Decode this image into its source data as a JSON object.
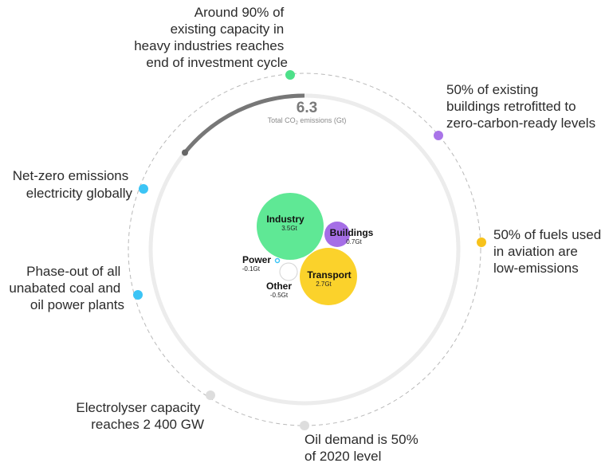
{
  "total": {
    "value": "6.3",
    "caption_prefix": "Total CO",
    "caption_sub": "2",
    "caption_suffix": " emissions (Gt)"
  },
  "milestones": [
    {
      "lines": [
        "Around 90% of",
        "existing capacity in",
        "heavy industries reaches",
        "end of investment cycle"
      ],
      "color": "#4de089"
    },
    {
      "lines": [
        "50% of existing",
        "buildings retrofitted to",
        "zero-carbon-ready levels"
      ],
      "color": "#a974e8"
    },
    {
      "lines": [
        "50% of fuels used",
        "in aviation are",
        "low-emissions"
      ],
      "color": "#f7c21b"
    },
    {
      "lines": [
        "Oil demand is 50%",
        "of 2020 level"
      ],
      "color": "#dddddd"
    },
    {
      "lines": [
        "Electrolyser capacity",
        "reaches 2 400 GW"
      ],
      "color": "#dddddd"
    },
    {
      "lines": [
        "Phase-out of all",
        "unabated coal and",
        "oil power plants"
      ],
      "color": "#3cc4f5"
    },
    {
      "lines": [
        "Net-zero emissions",
        "electricity globally"
      ],
      "color": "#3cc4f5"
    }
  ],
  "sectors": [
    {
      "name": "Industry",
      "value": "3.5Gt",
      "color": "#5fe895"
    },
    {
      "name": "Buildings",
      "value": "0.7Gt",
      "color": "#a56ee6"
    },
    {
      "name": "Transport",
      "value": "2.7Gt",
      "color": "#fbd22b"
    },
    {
      "name": "Power",
      "value": "-0.1Gt",
      "color": "#3cc4f5"
    },
    {
      "name": "Other",
      "value": "-0.5Gt",
      "color": "#ffffff"
    }
  ]
}
